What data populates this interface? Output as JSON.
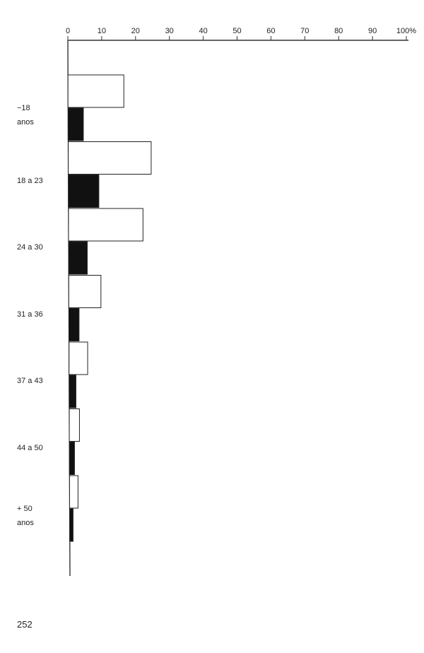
{
  "chart_data": {
    "type": "bar",
    "orientation": "horizontal",
    "categories": [
      {
        "line1": "−18",
        "line2": "anos"
      },
      {
        "line1": "18 a 23",
        "line2": ""
      },
      {
        "line1": "24 a 30",
        "line2": ""
      },
      {
        "line1": "31 a 36",
        "line2": ""
      },
      {
        "line1": "37 a 43",
        "line2": ""
      },
      {
        "line1": "44 a 50",
        "line2": ""
      },
      {
        "line1": "+ 50",
        "line2": "anos"
      }
    ],
    "series": [
      {
        "fill": "#ffffff",
        "values": [
          16.5,
          24.5,
          22,
          9.5,
          5.5,
          3,
          2.5
        ]
      },
      {
        "fill": "#111111",
        "values": [
          4.5,
          9,
          5.5,
          3,
          2,
          1.5,
          1
        ]
      }
    ],
    "xlim": [
      0,
      100
    ],
    "x_ticks": [
      "0",
      "10",
      "20",
      "30",
      "40",
      "50",
      "60",
      "70",
      "80",
      "90",
      "100%"
    ],
    "axis_position": "top",
    "grid": false,
    "legend": "none",
    "title": "",
    "xlabel": "",
    "ylabel": ""
  },
  "page": {
    "number": "252"
  }
}
